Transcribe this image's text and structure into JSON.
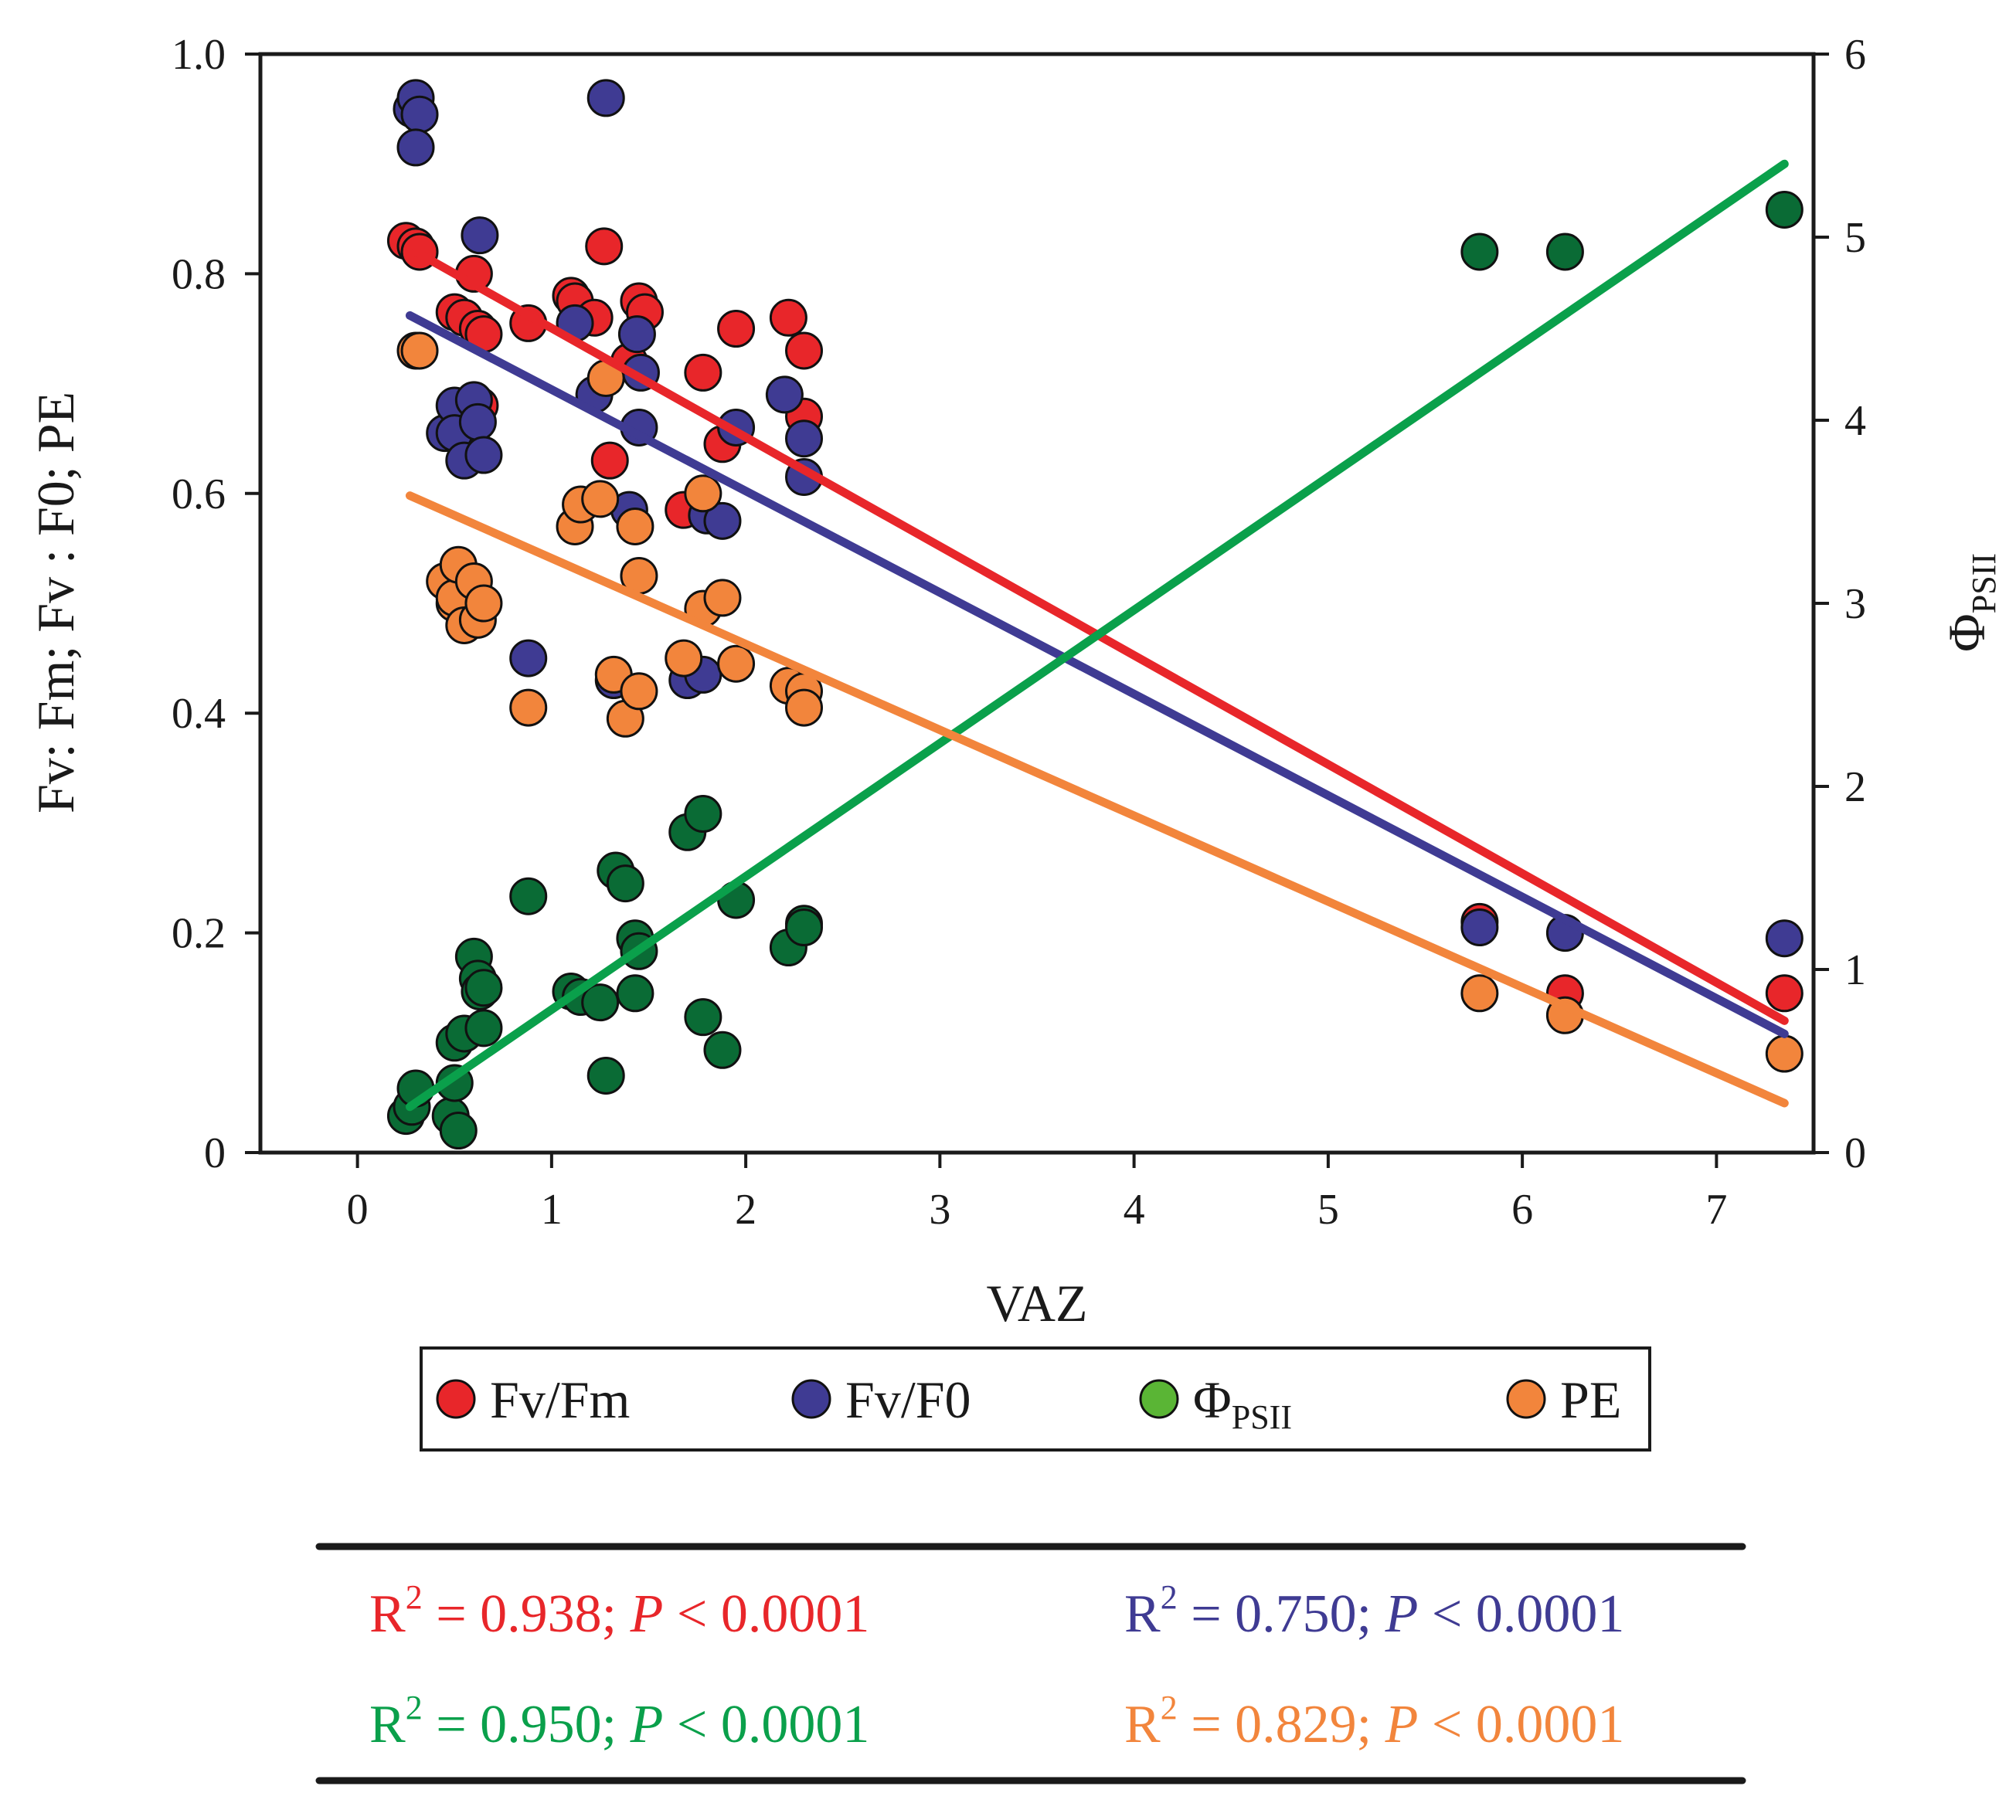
{
  "chart_data": {
    "type": "scatter",
    "xlabel": "VAZ",
    "ylabel_left": "Fv: Fm;  Fv : F0;  PE",
    "ylabel_right": "Φ",
    "ylabel_right_sub": "PSII",
    "xlim": [
      -0.5,
      7.5
    ],
    "ylim_left": [
      0,
      1.0
    ],
    "ylim_right": [
      0,
      6
    ],
    "x_ticks": [
      "0",
      "1",
      "2",
      "3",
      "4",
      "5",
      "6",
      "7"
    ],
    "y_left_ticks": [
      "0",
      "0.2",
      "0.4",
      "0.6",
      "0.8",
      "1.0"
    ],
    "y_right_ticks": [
      "0",
      "1",
      "2",
      "3",
      "4",
      "5",
      "6"
    ],
    "series": [
      {
        "name": "Fv/Fm",
        "label_main": "Fv/Fm",
        "label_sub": "",
        "color": "#e8262a",
        "axis": "left",
        "fit": {
          "x": [
            0.3,
            7.35
          ],
          "y": [
            0.82,
            0.12
          ]
        },
        "points": [
          [
            0.25,
            0.83
          ],
          [
            0.3,
            0.825
          ],
          [
            0.32,
            0.82
          ],
          [
            0.5,
            0.765
          ],
          [
            0.55,
            0.76
          ],
          [
            0.6,
            0.8
          ],
          [
            0.62,
            0.75
          ],
          [
            0.65,
            0.745
          ],
          [
            0.63,
            0.68
          ],
          [
            0.88,
            0.755
          ],
          [
            1.1,
            0.78
          ],
          [
            1.12,
            0.775
          ],
          [
            1.22,
            0.76
          ],
          [
            1.27,
            0.825
          ],
          [
            1.3,
            0.63
          ],
          [
            1.4,
            0.72
          ],
          [
            1.45,
            0.775
          ],
          [
            1.48,
            0.765
          ],
          [
            1.68,
            0.585
          ],
          [
            1.78,
            0.71
          ],
          [
            1.88,
            0.645
          ],
          [
            1.95,
            0.75
          ],
          [
            2.22,
            0.76
          ],
          [
            2.3,
            0.73
          ],
          [
            2.3,
            0.67
          ],
          [
            5.78,
            0.21
          ],
          [
            6.22,
            0.145
          ],
          [
            7.35,
            0.145
          ]
        ]
      },
      {
        "name": "Fv/F0",
        "label_main": "Fv/F0",
        "label_sub": "",
        "color": "#3f3b93",
        "axis": "left",
        "fit": {
          "x": [
            0.27,
            7.35
          ],
          "y": [
            0.762,
            0.108
          ]
        },
        "points": [
          [
            0.28,
            0.95
          ],
          [
            0.3,
            0.96
          ],
          [
            0.32,
            0.945
          ],
          [
            0.3,
            0.915
          ],
          [
            0.45,
            0.655
          ],
          [
            0.5,
            0.68
          ],
          [
            0.5,
            0.655
          ],
          [
            0.55,
            0.63
          ],
          [
            0.6,
            0.685
          ],
          [
            0.63,
            0.835
          ],
          [
            0.62,
            0.665
          ],
          [
            0.65,
            0.635
          ],
          [
            0.88,
            0.45
          ],
          [
            1.12,
            0.755
          ],
          [
            1.22,
            0.69
          ],
          [
            1.28,
            0.96
          ],
          [
            1.32,
            0.43
          ],
          [
            1.4,
            0.585
          ],
          [
            1.44,
            0.745
          ],
          [
            1.46,
            0.71
          ],
          [
            1.45,
            0.66
          ],
          [
            1.7,
            0.43
          ],
          [
            1.78,
            0.435
          ],
          [
            1.8,
            0.58
          ],
          [
            1.88,
            0.575
          ],
          [
            1.95,
            0.66
          ],
          [
            2.2,
            0.69
          ],
          [
            2.3,
            0.65
          ],
          [
            2.3,
            0.615
          ],
          [
            5.78,
            0.205
          ],
          [
            6.22,
            0.2
          ],
          [
            7.35,
            0.195
          ]
        ]
      },
      {
        "name": "ΦPSII",
        "label_main": "Φ",
        "label_sub": "PSII",
        "color": "#0a6b35",
        "axis": "right",
        "fit": {
          "x": [
            0.27,
            7.35
          ],
          "y": [
            0.25,
            5.4
          ]
        },
        "points": [
          [
            0.25,
            0.2
          ],
          [
            0.28,
            0.25
          ],
          [
            0.3,
            0.35
          ],
          [
            0.48,
            0.2
          ],
          [
            0.5,
            0.6
          ],
          [
            0.55,
            0.65
          ],
          [
            0.5,
            0.38
          ],
          [
            0.52,
            0.12
          ],
          [
            0.6,
            1.07
          ],
          [
            0.62,
            0.95
          ],
          [
            0.65,
            0.68
          ],
          [
            0.63,
            0.88
          ],
          [
            0.65,
            0.9
          ],
          [
            0.88,
            1.4
          ],
          [
            1.1,
            0.88
          ],
          [
            1.15,
            0.85
          ],
          [
            1.25,
            0.82
          ],
          [
            1.28,
            0.42
          ],
          [
            1.33,
            1.54
          ],
          [
            1.38,
            1.47
          ],
          [
            1.43,
            1.17
          ],
          [
            1.45,
            1.1
          ],
          [
            1.43,
            0.87
          ],
          [
            1.7,
            1.75
          ],
          [
            1.78,
            1.85
          ],
          [
            1.78,
            0.74
          ],
          [
            1.88,
            0.56
          ],
          [
            1.95,
            1.38
          ],
          [
            2.22,
            1.12
          ],
          [
            2.3,
            1.25
          ],
          [
            2.3,
            1.23
          ],
          [
            5.78,
            4.92
          ],
          [
            6.22,
            4.92
          ],
          [
            7.35,
            5.15
          ]
        ]
      },
      {
        "name": "PE",
        "label_main": "PE",
        "label_sub": "",
        "color": "#f2853c",
        "axis": "left",
        "fit": {
          "x": [
            0.27,
            7.35
          ],
          "y": [
            0.598,
            0.045
          ]
        },
        "points": [
          [
            0.3,
            0.73
          ],
          [
            0.32,
            0.73
          ],
          [
            0.45,
            0.52
          ],
          [
            0.5,
            0.5
          ],
          [
            0.5,
            0.505
          ],
          [
            0.52,
            0.535
          ],
          [
            0.55,
            0.48
          ],
          [
            0.6,
            0.52
          ],
          [
            0.62,
            0.485
          ],
          [
            0.65,
            0.5
          ],
          [
            0.88,
            0.405
          ],
          [
            1.12,
            0.57
          ],
          [
            1.15,
            0.59
          ],
          [
            1.25,
            0.595
          ],
          [
            1.28,
            0.705
          ],
          [
            1.32,
            0.435
          ],
          [
            1.38,
            0.395
          ],
          [
            1.43,
            0.57
          ],
          [
            1.45,
            0.525
          ],
          [
            1.45,
            0.42
          ],
          [
            1.68,
            0.45
          ],
          [
            1.78,
            0.6
          ],
          [
            1.78,
            0.495
          ],
          [
            1.88,
            0.505
          ],
          [
            1.95,
            0.445
          ],
          [
            2.22,
            0.425
          ],
          [
            2.3,
            0.42
          ],
          [
            2.3,
            0.405
          ],
          [
            5.78,
            0.145
          ],
          [
            6.22,
            0.125
          ],
          [
            7.35,
            0.09
          ]
        ]
      }
    ],
    "stats": [
      {
        "series": "Fv/Fm",
        "r2_label": "R",
        "r2_sup": "2",
        "r2_value": " = 0.938; ",
        "p_label": "P",
        "p_value": " < 0.0001",
        "color": "#e8262a"
      },
      {
        "series": "Fv/F0",
        "r2_label": "R",
        "r2_sup": "2",
        "r2_value": " = 0.750; ",
        "p_label": "P",
        "p_value": " < 0.0001",
        "color": "#3f3b93"
      },
      {
        "series": "ΦPSII",
        "r2_label": "R",
        "r2_sup": "2",
        "r2_value": " = 0.950; ",
        "p_label": "P",
        "p_value": " < 0.0001",
        "color": "#0aa04b"
      },
      {
        "series": "PE",
        "r2_label": "R",
        "r2_sup": "2",
        "r2_value": " = 0.829; ",
        "p_label": "P",
        "p_value": " < 0.0001",
        "color": "#f2853c"
      }
    ]
  }
}
